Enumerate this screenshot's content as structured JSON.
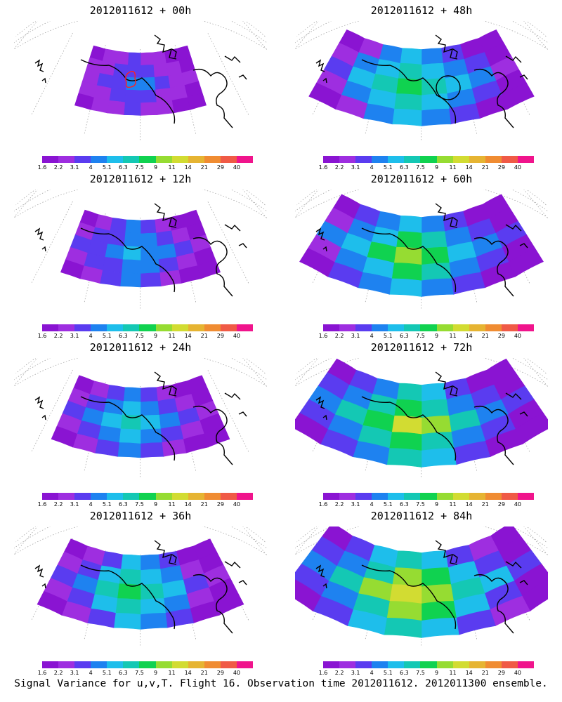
{
  "caption": "Signal Variance for u,v,T. Flight 16. Observation time 2012011612. 2012011300 ensemble.",
  "colorbar": {
    "labels": [
      "1.6",
      "2.2",
      "3.1",
      "4",
      "5.1",
      "6.3",
      "7.5",
      "9",
      "11",
      "14",
      "21",
      "29",
      "40"
    ],
    "colors": [
      "#8a14d2",
      "#9e2ee0",
      "#5a3cf0",
      "#1e82f0",
      "#1ebeeb",
      "#14c8b4",
      "#10d250",
      "#96dc32",
      "#d2dc32",
      "#e6b432",
      "#f08c32",
      "#f05a46",
      "#f0148c"
    ]
  },
  "panels": [
    {
      "title": "2012011612 + 00h",
      "level": 0.15,
      "marker": "red-contour"
    },
    {
      "title": "2012011612 + 48h",
      "level": 0.65,
      "marker": "circle"
    },
    {
      "title": "2012011612 + 12h",
      "level": 0.3
    },
    {
      "title": "2012011612 + 60h",
      "level": 0.75
    },
    {
      "title": "2012011612 + 24h",
      "level": 0.4
    },
    {
      "title": "2012011612 + 72h",
      "level": 0.85
    },
    {
      "title": "2012011612 + 36h",
      "level": 0.55
    },
    {
      "title": "2012011612 + 84h",
      "level": 0.95
    }
  ]
}
